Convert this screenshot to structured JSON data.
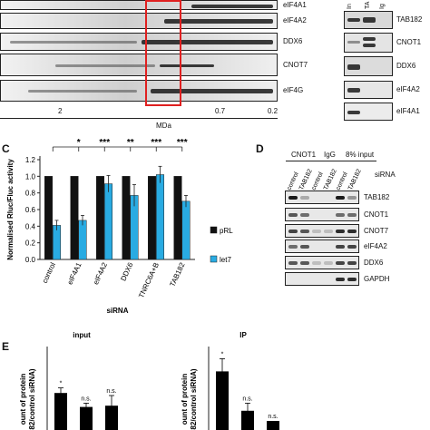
{
  "panelA": {
    "row_labels": [
      "eIF4A1",
      "eIF4A2",
      "DDX6",
      "CNOT7",
      "eIF4G"
    ],
    "axis": {
      "ticks": [
        "2",
        "0.7",
        "0.2"
      ],
      "unit": "MDa"
    }
  },
  "panelB": {
    "col_labels": [
      "In",
      "TA",
      "Ig"
    ],
    "row_labels": [
      "TAB182",
      "CNOT1",
      "DDX6",
      "eIF4A2",
      "eIF4A1"
    ]
  },
  "panelC": {
    "letter": "C",
    "ylabel": "Normalised Rluc/Fluc activity",
    "xlabel": "siRNA",
    "sig": [
      "*",
      "***",
      "**",
      "***",
      "***"
    ],
    "legend": [
      {
        "name": "pRL",
        "color": "#111111"
      },
      {
        "name": "let7",
        "color": "#29abe2"
      }
    ]
  },
  "panelD": {
    "letter": "D",
    "headers": [
      "CNOT1",
      "IgG",
      "8% input"
    ],
    "sirna": [
      "control",
      "TAB182",
      "control",
      "TAB182",
      "control",
      "TAB182"
    ],
    "sirna_label": "siRNA",
    "row_labels": [
      "TAB182",
      "CNOT1",
      "CNOT7",
      "eIF4A2",
      "DDX6",
      "GAPDH"
    ]
  },
  "panelE": {
    "letter": "E",
    "charts": [
      {
        "title": "input",
        "ylabel": "ount of protein\n82/control siRNA)"
      },
      {
        "title": "IP",
        "ylabel": "ount of protein\n82/control siRNA)"
      }
    ]
  },
  "chart_data": [
    {
      "type": "bar",
      "categories": [
        "control",
        "eIF4A1",
        "eIF4A2",
        "DDX6",
        "TNRC6A+B",
        "TAB182"
      ],
      "series": [
        {
          "name": "pRL",
          "values": [
            1.0,
            1.0,
            1.0,
            1.0,
            1.0,
            1.0
          ],
          "errors": [
            0,
            0,
            0,
            0,
            0,
            0
          ]
        },
        {
          "name": "let7",
          "values": [
            0.41,
            0.47,
            0.91,
            0.77,
            1.02,
            0.7
          ],
          "errors": [
            0.06,
            0.06,
            0.1,
            0.13,
            0.1,
            0.07
          ]
        }
      ],
      "xlabel": "siRNA",
      "ylabel": "Normalised Rluc/Fluc activity",
      "ylim": [
        0,
        1.2
      ],
      "yticks": [
        "0.0",
        "0.2",
        "0.4",
        "0.6",
        "0.8",
        "1.0",
        "1.2"
      ],
      "legend_position": "right"
    },
    {
      "type": "bar",
      "title": "input",
      "values": [
        1.6,
        1.05,
        1.1
      ],
      "errors": [
        0.2,
        0.15,
        0.4
      ],
      "annotations": [
        "*",
        "n.s.",
        "n.s."
      ]
    },
    {
      "type": "bar",
      "title": "IP",
      "values": [
        2.45,
        0.9,
        0.5
      ],
      "errors": [
        0.5,
        0.3,
        0
      ],
      "annotations": [
        "*",
        "n.s.",
        "n.s."
      ]
    }
  ]
}
